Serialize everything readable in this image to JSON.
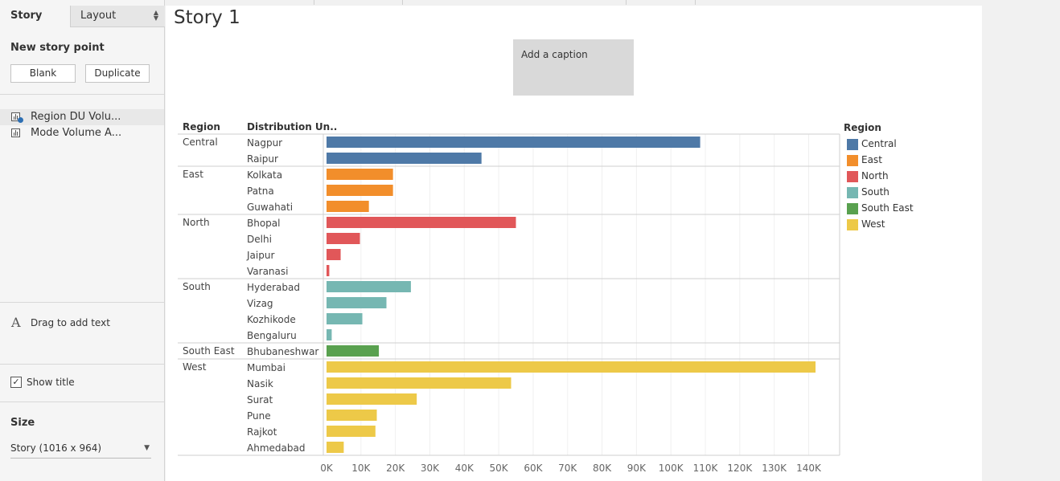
{
  "left_panel": {
    "tabs": {
      "story": "Story",
      "layout": "Layout"
    },
    "new_story_point": {
      "title": "New story point",
      "blank_label": "Blank",
      "duplicate_label": "Duplicate"
    },
    "story_points": [
      {
        "label": "Region DU Volu...",
        "active": true
      },
      {
        "label": "Mode Volume A...",
        "active": false
      }
    ],
    "drag_text": "Drag to add text",
    "drag_icon": "A",
    "show_title": {
      "label": "Show title",
      "checked": true
    },
    "size": {
      "title": "Size",
      "value": "Story (1016 x 964)"
    }
  },
  "story": {
    "title": "Story 1",
    "caption": "Add a caption"
  },
  "chart_data": {
    "type": "bar",
    "orientation": "horizontal",
    "headers": {
      "region": "Region",
      "distribution_unit": "Distribution Un.."
    },
    "x_ticks": [
      0,
      10000,
      20000,
      30000,
      40000,
      50000,
      60000,
      70000,
      80000,
      90000,
      100000,
      110000,
      120000,
      130000,
      140000
    ],
    "x_tick_labels": [
      "0K",
      "10K",
      "20K",
      "30K",
      "40K",
      "50K",
      "60K",
      "70K",
      "80K",
      "90K",
      "100K",
      "110K",
      "120K",
      "130K",
      "140K"
    ],
    "xlim": [
      0,
      149000
    ],
    "grid": "vertical",
    "legend_title": "Region",
    "legend_position": "right",
    "groups": [
      {
        "region": "Central",
        "color": "#4e79a7",
        "rows": [
          {
            "unit": "Nagpur",
            "value": 108500
          },
          {
            "unit": "Raipur",
            "value": 45000
          }
        ]
      },
      {
        "region": "East",
        "color": "#f28e2b",
        "rows": [
          {
            "unit": "Kolkata",
            "value": 19300
          },
          {
            "unit": "Patna",
            "value": 19300
          },
          {
            "unit": "Guwahati",
            "value": 12300
          }
        ]
      },
      {
        "region": "North",
        "color": "#e15759",
        "rows": [
          {
            "unit": "Bhopal",
            "value": 55000
          },
          {
            "unit": "Delhi",
            "value": 9700
          },
          {
            "unit": "Jaipur",
            "value": 4100
          },
          {
            "unit": "Varanasi",
            "value": 800
          }
        ]
      },
      {
        "region": "South",
        "color": "#76b7b2",
        "rows": [
          {
            "unit": "Hyderabad",
            "value": 24500
          },
          {
            "unit": "Vizag",
            "value": 17400
          },
          {
            "unit": "Kozhikode",
            "value": 10400
          },
          {
            "unit": "Bengaluru",
            "value": 1500
          }
        ]
      },
      {
        "region": "South East",
        "color": "#59a14f",
        "rows": [
          {
            "unit": "Bhubaneshwar",
            "value": 15200
          }
        ]
      },
      {
        "region": "West",
        "color": "#edc948",
        "rows": [
          {
            "unit": "Mumbai",
            "value": 142000
          },
          {
            "unit": "Nasik",
            "value": 53600
          },
          {
            "unit": "Surat",
            "value": 26200
          },
          {
            "unit": "Pune",
            "value": 14600
          },
          {
            "unit": "Rajkot",
            "value": 14200
          },
          {
            "unit": "Ahmedabad",
            "value": 5000
          }
        ]
      }
    ]
  },
  "legend": {
    "title": "Region",
    "items": [
      {
        "label": "Central",
        "color": "#4e79a7"
      },
      {
        "label": "East",
        "color": "#f28e2b"
      },
      {
        "label": "North",
        "color": "#e15759"
      },
      {
        "label": "South",
        "color": "#76b7b2"
      },
      {
        "label": "South East",
        "color": "#59a14f"
      },
      {
        "label": "West",
        "color": "#edc948"
      }
    ]
  }
}
